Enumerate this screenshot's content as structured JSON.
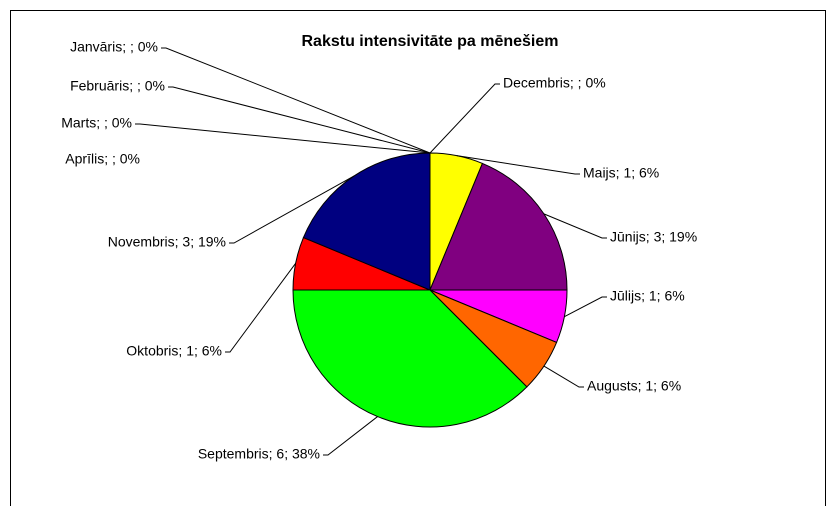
{
  "chart_data": {
    "type": "pie",
    "title": "Rakstu intensivitāte pa mēnešiem",
    "categories": [
      "Janvāris",
      "Februāris",
      "Marts",
      "Aprīlis",
      "Maijs",
      "Jūnijs",
      "Jūlijs",
      "Augusts",
      "Septembris",
      "Oktobris",
      "Novembris",
      "Decembris"
    ],
    "values": [
      null,
      null,
      null,
      null,
      1,
      3,
      1,
      1,
      6,
      1,
      3,
      null
    ],
    "value_labels": [
      "Janvāris; ; 0%",
      "Februāris; ; 0%",
      "Marts; ; 0%",
      "Aprīlis; ; 0%",
      "Maijs; 1; 6%",
      "Jūnijs; 3; 19%",
      "Jūlijs; 1; 6%",
      "Augusts; 1; 6%",
      "Septembris; 6; 38%",
      "Oktobris; 1; 6%",
      "Novembris; 3; 19%",
      "Decembris; ; 0%"
    ],
    "colors": [
      "#9999ff",
      "#993366",
      "#ffffcc",
      "#ccffff",
      "#ffff00",
      "#800080",
      "#ff00ff",
      "#ff6600",
      "#00ff00",
      "#ff0000",
      "#000080",
      "#00ccff"
    ]
  }
}
